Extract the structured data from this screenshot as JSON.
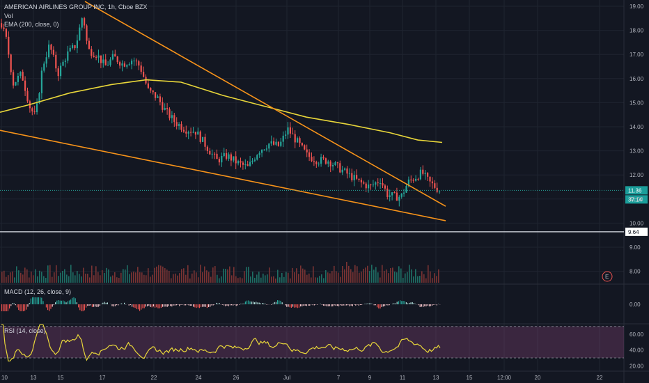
{
  "legend": {
    "symbol": "AMERICAN AIRLINES GROUP INC, 1h, Cboe BZX",
    "vol": "Vol",
    "ema": "EMA (200, close, 0)",
    "macd": "MACD (12, 26, close, 9)",
    "rsi": "RSI (14, close)"
  },
  "chart_data": [
    {
      "type": "candlestick",
      "title": "AMERICAN AIRLINES GROUP INC, 1h, Cboe BZX",
      "x_ticks": [
        "10",
        "13",
        "15",
        "17",
        "22",
        "24",
        "26",
        "Jul",
        "7",
        "9",
        "11",
        "13",
        "15",
        "12:00",
        "20",
        "22"
      ],
      "y_ticks": [
        "19.00",
        "18.00",
        "17.00",
        "16.00",
        "15.00",
        "14.00",
        "13.00",
        "12.00",
        "11.00",
        "10.00",
        "9.00",
        "8.00"
      ],
      "ylim": [
        7.5,
        19.2
      ],
      "price_path": [
        [
          0,
          18.3
        ],
        [
          8,
          17.6
        ],
        [
          18,
          15.8
        ],
        [
          30,
          16.2
        ],
        [
          42,
          14.8
        ],
        [
          50,
          14.4
        ],
        [
          60,
          16.5
        ],
        [
          70,
          17.4
        ],
        [
          82,
          16.2
        ],
        [
          95,
          17.0
        ],
        [
          108,
          17.4
        ],
        [
          118,
          18.7
        ],
        [
          125,
          17.2
        ],
        [
          138,
          17.0
        ],
        [
          150,
          16.5
        ],
        [
          162,
          16.9
        ],
        [
          175,
          16.6
        ],
        [
          190,
          16.8
        ],
        [
          200,
          16.5
        ],
        [
          212,
          15.5
        ],
        [
          225,
          15.2
        ],
        [
          238,
          14.6
        ],
        [
          250,
          14.2
        ],
        [
          265,
          13.9
        ],
        [
          280,
          13.8
        ],
        [
          295,
          13.2
        ],
        [
          310,
          12.6
        ],
        [
          325,
          12.8
        ],
        [
          340,
          12.5
        ],
        [
          355,
          12.3
        ],
        [
          370,
          13.0
        ],
        [
          385,
          13.3
        ],
        [
          400,
          13.2
        ],
        [
          412,
          13.9
        ],
        [
          425,
          13.4
        ],
        [
          440,
          12.8
        ],
        [
          455,
          12.6
        ],
        [
          470,
          12.6
        ],
        [
          485,
          12.3
        ],
        [
          500,
          12.0
        ],
        [
          515,
          11.7
        ],
        [
          530,
          11.5
        ],
        [
          545,
          11.8
        ],
        [
          555,
          11.2
        ],
        [
          565,
          11.1
        ],
        [
          575,
          11.1
        ],
        [
          585,
          11.7
        ],
        [
          595,
          11.9
        ],
        [
          605,
          12.1
        ],
        [
          615,
          11.7
        ],
        [
          630,
          11.36
        ]
      ],
      "series": [
        {
          "name": "EMA (200, close, 0)",
          "points": [
            [
              0,
              14.6
            ],
            [
              40,
              14.9
            ],
            [
              100,
              15.4
            ],
            [
              160,
              15.75
            ],
            [
              210,
              15.95
            ],
            [
              260,
              15.85
            ],
            [
              320,
              15.3
            ],
            [
              380,
              14.85
            ],
            [
              440,
              14.4
            ],
            [
              500,
              14.1
            ],
            [
              560,
              13.75
            ],
            [
              600,
              13.45
            ],
            [
              635,
              13.35
            ]
          ]
        },
        {
          "name": "trendline-upper",
          "points": [
            [
              122,
              19.2
            ],
            [
              640,
              10.7
            ]
          ]
        },
        {
          "name": "trendline-lower",
          "points": [
            [
              0,
              13.85
            ],
            [
              640,
              10.1
            ]
          ]
        }
      ],
      "last_price": "11.36",
      "countdown": "37:14",
      "level_line": "9.64",
      "event_marker": "E"
    },
    {
      "type": "bar",
      "title": "MACD (12, 26, close, 9)",
      "y_ticks": [
        "0.00"
      ]
    },
    {
      "type": "line",
      "title": "RSI (14, close)",
      "y_ticks": [
        "60.00",
        "40.00",
        "20.00"
      ],
      "ylim": [
        20,
        75
      ],
      "bands": [
        70,
        30
      ]
    }
  ]
}
